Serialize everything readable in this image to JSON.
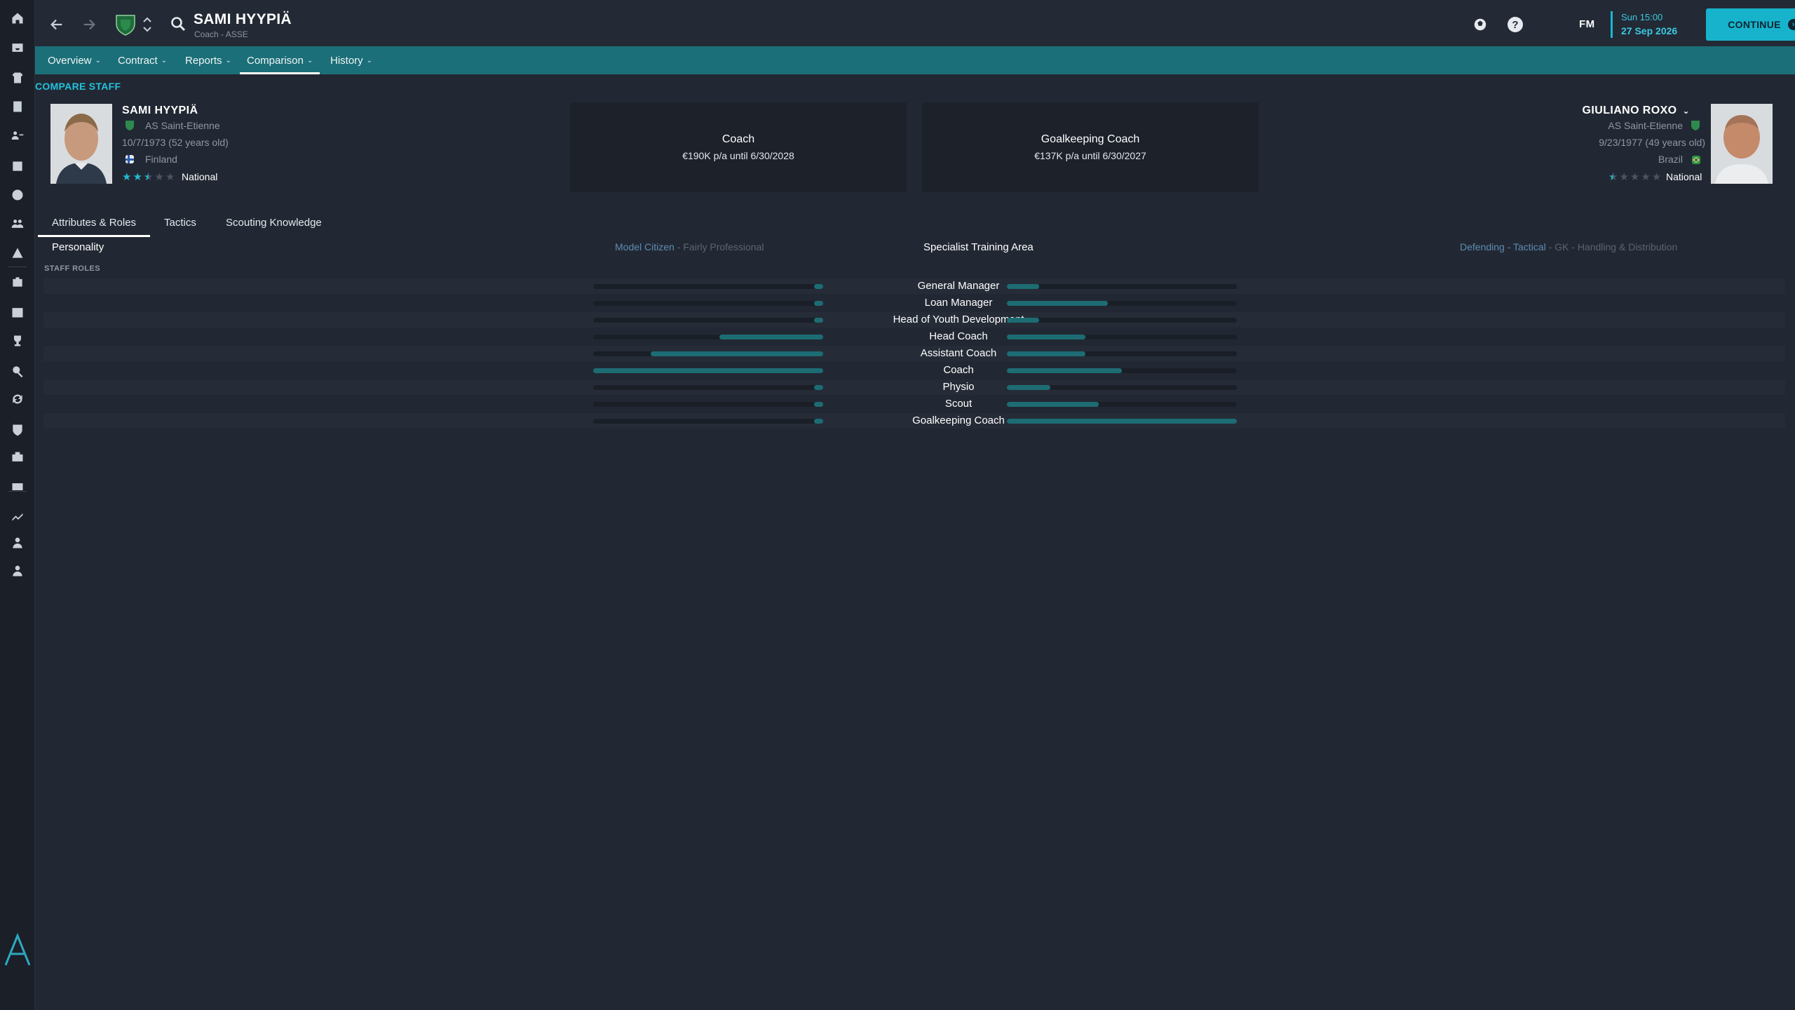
{
  "header": {
    "title": "SAMI HYYPIÄ",
    "subtitle": "Coach - ASSE",
    "fm_logo": "FM",
    "date_time": "Sun 15:00",
    "date_day": "27 Sep 2026",
    "continue_label": "CONTINUE",
    "accent_color": "#17b3cc"
  },
  "sidebar": {
    "icons": [
      "home-icon",
      "inbox-icon",
      "squad-icon",
      "tactics-icon",
      "staff-icon",
      "training-icon",
      "match-icon",
      "dynamics-icon",
      "club-info-icon",
      "medical-icon",
      "schedule-icon",
      "competitions-icon",
      "scouting-icon",
      "transfers-icon",
      "club-vision-icon",
      "finances-icon",
      "dev-centre-icon",
      "data-hub-icon",
      "manager-icon",
      "staff-profile-icon"
    ]
  },
  "menu": {
    "items": [
      {
        "label": "Overview"
      },
      {
        "label": "Contract"
      },
      {
        "label": "Reports"
      },
      {
        "label": "Comparison"
      },
      {
        "label": "History"
      }
    ],
    "active_index": 3
  },
  "section_title": "COMPARE STAFF",
  "staff_left": {
    "name": "SAMI HYYPIÄ",
    "club": "AS Saint-Etienne",
    "dob": "10/7/1973 (52 years old)",
    "nation": "Finland",
    "reputation_stars": 2.5,
    "reputation_label": "National",
    "role": "Coach",
    "contract": "€190K p/a until 6/30/2028"
  },
  "staff_right": {
    "name": "GIULIANO ROXO",
    "club": "AS Saint-Etienne",
    "dob": "9/23/1977 (49 years old)",
    "nation": "Brazil",
    "reputation_stars": 0.5,
    "reputation_label": "National",
    "role": "Goalkeeping Coach",
    "contract": "€137K p/a until 6/30/2027"
  },
  "tabs": [
    {
      "label": "Attributes & Roles"
    },
    {
      "label": "Tactics"
    },
    {
      "label": "Scouting Knowledge"
    }
  ],
  "personality": {
    "label": "Personality",
    "value_primary": "Model Citizen",
    "separator": " - ",
    "value_secondary": "Fairly Professional"
  },
  "specialist": {
    "label": "Specialist Training Area",
    "value_primary": "Defending - Tactical",
    "separator": " - ",
    "value_secondary": "GK - Handling & Distribution"
  },
  "staff_roles": {
    "heading": "STAFF ROLES",
    "rows": [
      {
        "role": "General Manager",
        "left": 0.04,
        "right": 0.14
      },
      {
        "role": "Loan Manager",
        "left": 0.04,
        "right": 0.44
      },
      {
        "role": "Head of Youth Development",
        "left": 0.04,
        "right": 0.14
      },
      {
        "role": "Head Coach",
        "left": 0.45,
        "right": 0.34
      },
      {
        "role": "Assistant Coach",
        "left": 0.75,
        "right": 0.34
      },
      {
        "role": "Coach",
        "left": 1.0,
        "right": 0.5
      },
      {
        "role": "Physio",
        "left": 0.04,
        "right": 0.19
      },
      {
        "role": "Scout",
        "left": 0.04,
        "right": 0.4
      },
      {
        "role": "Goalkeeping Coach",
        "left": 0.04,
        "right": 1.0
      }
    ]
  }
}
